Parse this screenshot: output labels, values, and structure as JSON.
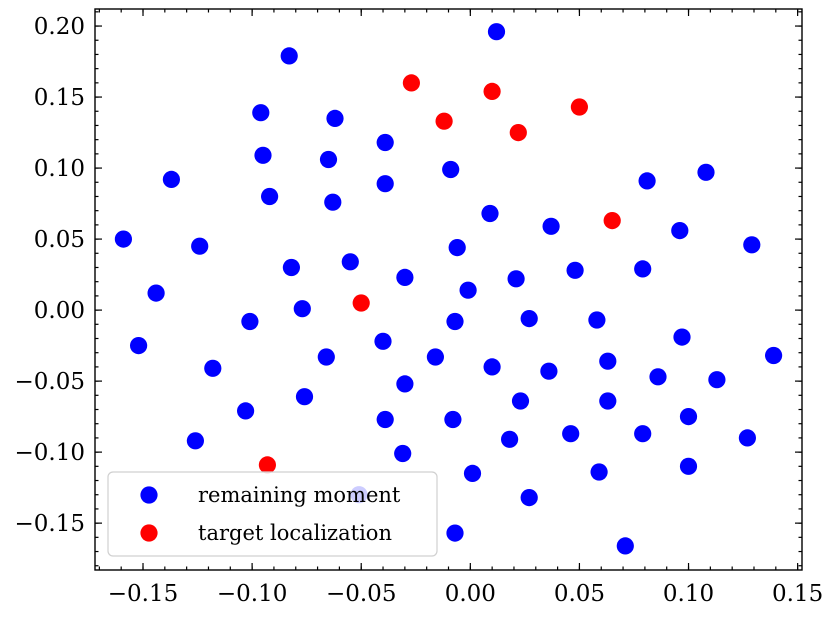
{
  "chart_data": {
    "type": "scatter",
    "title": "",
    "xlabel": "",
    "ylabel": "",
    "xlim": [
      -0.172,
      0.152
    ],
    "ylim": [
      -0.183,
      0.212
    ],
    "xticks": [
      -0.15,
      -0.1,
      -0.05,
      0.0,
      0.05,
      0.1,
      0.15
    ],
    "yticks": [
      -0.15,
      -0.1,
      -0.05,
      0.0,
      0.05,
      0.1,
      0.15,
      0.2
    ],
    "x_tick_labels": [
      "−0.15",
      "−0.10",
      "−0.05",
      "0.00",
      "0.05",
      "0.10",
      "0.15"
    ],
    "y_tick_labels": [
      "−0.15",
      "−0.10",
      "−0.05",
      "0.00",
      "0.05",
      "0.10",
      "0.15",
      "0.20"
    ],
    "grid": false,
    "legend_position": "lower-left",
    "series": [
      {
        "name": "remaining moment",
        "color": "#0000ff",
        "points": [
          [
            0.012,
            0.196
          ],
          [
            -0.083,
            0.179
          ],
          [
            -0.096,
            0.139
          ],
          [
            -0.062,
            0.135
          ],
          [
            -0.095,
            0.109
          ],
          [
            -0.065,
            0.106
          ],
          [
            -0.039,
            0.118
          ],
          [
            -0.009,
            0.099
          ],
          [
            -0.137,
            0.092
          ],
          [
            -0.092,
            0.08
          ],
          [
            -0.063,
            0.076
          ],
          [
            -0.039,
            0.089
          ],
          [
            0.009,
            0.068
          ],
          [
            0.037,
            0.059
          ],
          [
            0.081,
            0.091
          ],
          [
            0.108,
            0.097
          ],
          [
            -0.159,
            0.05
          ],
          [
            -0.124,
            0.045
          ],
          [
            -0.006,
            0.044
          ],
          [
            0.096,
            0.056
          ],
          [
            0.129,
            0.046
          ],
          [
            -0.082,
            0.03
          ],
          [
            -0.055,
            0.034
          ],
          [
            -0.03,
            0.023
          ],
          [
            0.021,
            0.022
          ],
          [
            0.048,
            0.028
          ],
          [
            0.079,
            0.029
          ],
          [
            -0.144,
            0.012
          ],
          [
            -0.077,
            0.001
          ],
          [
            -0.001,
            0.014
          ],
          [
            -0.101,
            -0.008
          ],
          [
            -0.007,
            -0.008
          ],
          [
            0.027,
            -0.006
          ],
          [
            0.058,
            -0.007
          ],
          [
            -0.152,
            -0.025
          ],
          [
            -0.066,
            -0.033
          ],
          [
            -0.04,
            -0.022
          ],
          [
            -0.016,
            -0.033
          ],
          [
            0.097,
            -0.019
          ],
          [
            -0.118,
            -0.041
          ],
          [
            -0.03,
            -0.052
          ],
          [
            0.01,
            -0.04
          ],
          [
            0.036,
            -0.043
          ],
          [
            0.063,
            -0.036
          ],
          [
            0.086,
            -0.047
          ],
          [
            0.113,
            -0.049
          ],
          [
            0.139,
            -0.032
          ],
          [
            -0.103,
            -0.071
          ],
          [
            -0.076,
            -0.061
          ],
          [
            -0.039,
            -0.077
          ],
          [
            -0.008,
            -0.077
          ],
          [
            0.023,
            -0.064
          ],
          [
            0.063,
            -0.064
          ],
          [
            0.1,
            -0.075
          ],
          [
            -0.126,
            -0.092
          ],
          [
            -0.031,
            -0.101
          ],
          [
            0.018,
            -0.091
          ],
          [
            0.046,
            -0.087
          ],
          [
            0.079,
            -0.087
          ],
          [
            0.127,
            -0.09
          ],
          [
            0.001,
            -0.115
          ],
          [
            0.059,
            -0.114
          ],
          [
            0.1,
            -0.11
          ],
          [
            -0.051,
            -0.13
          ],
          [
            0.027,
            -0.132
          ],
          [
            -0.007,
            -0.157
          ],
          [
            0.071,
            -0.166
          ]
        ]
      },
      {
        "name": "target localization",
        "color": "#ff0000",
        "points": [
          [
            -0.027,
            0.16
          ],
          [
            0.01,
            0.154
          ],
          [
            -0.012,
            0.133
          ],
          [
            0.022,
            0.125
          ],
          [
            0.05,
            0.143
          ],
          [
            0.065,
            0.063
          ],
          [
            -0.05,
            0.005
          ],
          [
            -0.093,
            -0.109
          ]
        ]
      }
    ]
  }
}
